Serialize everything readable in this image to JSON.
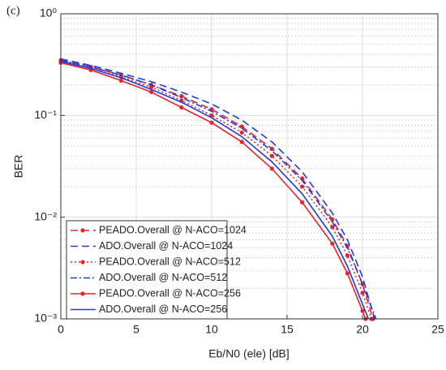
{
  "chart_data": {
    "type": "line",
    "title": "(c)",
    "xlabel": "Eb/N0 (ele) [dB]",
    "ylabel": "BER",
    "log_y": true,
    "grid": true,
    "minor_grid": true,
    "legend": "lower left",
    "xlim": [
      0,
      25
    ],
    "xticks": [
      0,
      5,
      10,
      15,
      20,
      25
    ],
    "ylim": [
      0.001,
      1
    ],
    "yticks": [
      {
        "value": 1,
        "label": "10⁰"
      },
      {
        "value": 0.1,
        "label": "10⁻¹"
      },
      {
        "value": 0.01,
        "label": "10⁻²"
      },
      {
        "value": 0.001,
        "label": "10⁻³"
      }
    ],
    "series": [
      {
        "name": "PEADO.Overall @ N-ACO=1024",
        "color": "#e8232a",
        "dash": "dashed",
        "marker": true,
        "x": [
          0,
          2,
          4,
          6,
          8,
          10,
          12,
          14,
          16,
          18,
          19,
          20,
          20.7
        ],
        "values": [
          0.35,
          0.3,
          0.25,
          0.2,
          0.155,
          0.115,
          0.078,
          0.047,
          0.024,
          0.0095,
          0.0052,
          0.0022,
          0.001
        ]
      },
      {
        "name": "ADO.Overall @ N-ACO=1024",
        "color": "#1f3fd6",
        "dash": "dashed",
        "marker": false,
        "x": [
          0,
          2,
          4,
          6,
          8,
          10,
          12,
          14,
          16,
          18,
          19,
          20,
          20.8
        ],
        "values": [
          0.36,
          0.31,
          0.26,
          0.215,
          0.17,
          0.13,
          0.09,
          0.055,
          0.028,
          0.011,
          0.006,
          0.0026,
          0.001
        ]
      },
      {
        "name": "PEADO.Overall @ N-ACO=512",
        "color": "#e8232a",
        "dash": "dotted",
        "marker": true,
        "x": [
          0,
          2,
          4,
          6,
          8,
          10,
          12,
          14,
          16,
          18,
          19,
          20,
          20.6
        ],
        "values": [
          0.34,
          0.29,
          0.24,
          0.19,
          0.14,
          0.1,
          0.068,
          0.04,
          0.02,
          0.008,
          0.0042,
          0.0018,
          0.001
        ]
      },
      {
        "name": "ADO.Overall @ N-ACO=512",
        "color": "#1f3fd6",
        "dash": "dashdot",
        "marker": false,
        "x": [
          0,
          2,
          4,
          6,
          8,
          10,
          12,
          14,
          16,
          18,
          19,
          20,
          20.9
        ],
        "values": [
          0.35,
          0.3,
          0.25,
          0.2,
          0.15,
          0.11,
          0.075,
          0.045,
          0.023,
          0.009,
          0.005,
          0.0022,
          0.001
        ]
      },
      {
        "name": "PEADO.Overall @ N-ACO=256",
        "color": "#e8232a",
        "dash": "solid",
        "marker": true,
        "x": [
          0,
          2,
          4,
          6,
          8,
          10,
          12,
          14,
          16,
          18,
          19,
          20,
          20.2
        ],
        "values": [
          0.33,
          0.28,
          0.22,
          0.17,
          0.12,
          0.085,
          0.055,
          0.03,
          0.014,
          0.0055,
          0.0028,
          0.0012,
          0.001
        ]
      },
      {
        "name": "ADO.Overall @ N-ACO=256",
        "color": "#1f3fd6",
        "dash": "solid",
        "marker": false,
        "x": [
          0,
          2,
          4,
          6,
          8,
          10,
          12,
          14,
          16,
          18,
          19,
          20,
          20.4
        ],
        "values": [
          0.34,
          0.29,
          0.235,
          0.18,
          0.135,
          0.095,
          0.062,
          0.035,
          0.017,
          0.0065,
          0.0033,
          0.0014,
          0.001
        ]
      }
    ]
  }
}
